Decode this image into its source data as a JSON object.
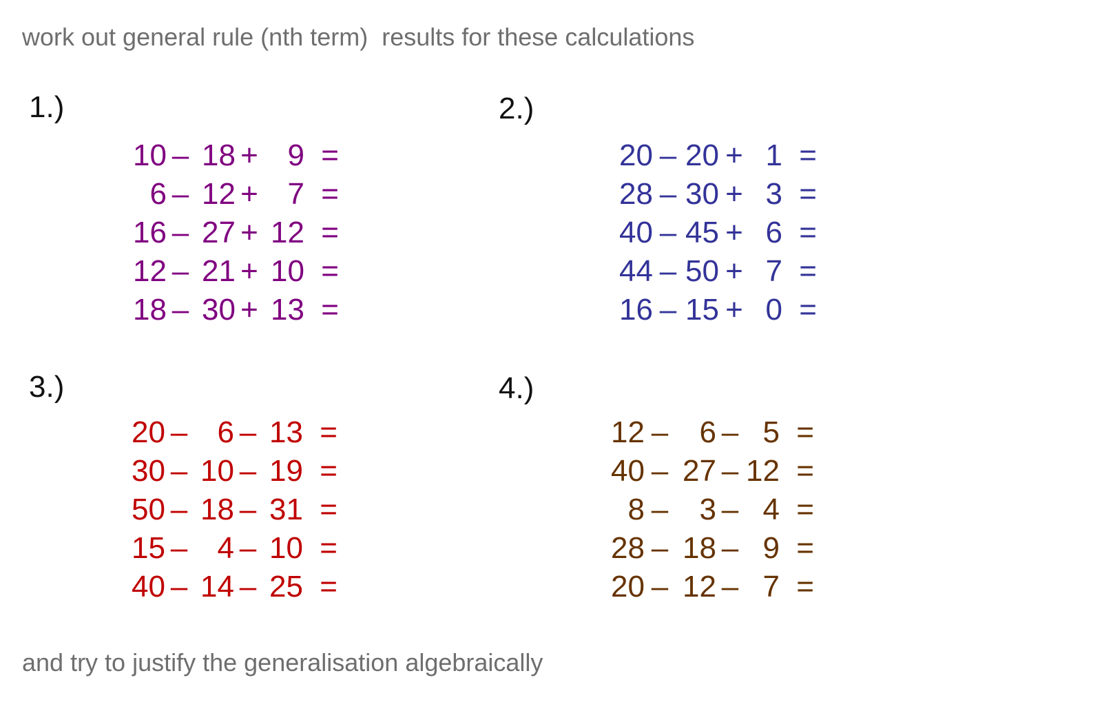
{
  "instructions": {
    "top": "work out general rule (nth term)  results for these calculations",
    "bottom": "and try to justify the generalisation algebraically"
  },
  "colors": {
    "group1": "#800080",
    "group2": "#333399",
    "group3": "#c00000",
    "group4": "#663300",
    "instruction_text": "#6e6e6e"
  },
  "groups": [
    {
      "label": "1.)",
      "equations": [
        [
          "10",
          "–",
          "18",
          "+",
          "9",
          "="
        ],
        [
          "6",
          "–",
          "12",
          "+",
          "7",
          "="
        ],
        [
          "16",
          "–",
          "27",
          "+",
          "12",
          "="
        ],
        [
          "12",
          "–",
          "21",
          "+",
          "10",
          "="
        ],
        [
          "18",
          "–",
          "30",
          "+",
          "13",
          "="
        ]
      ]
    },
    {
      "label": "2.)",
      "equations": [
        [
          "20",
          "–",
          "20",
          "+",
          "1",
          "="
        ],
        [
          "28",
          "–",
          "30",
          "+",
          "3",
          "="
        ],
        [
          "40",
          "–",
          "45",
          "+",
          "6",
          "="
        ],
        [
          "44",
          "–",
          "50",
          "+",
          "7",
          "="
        ],
        [
          "16",
          "–",
          "15",
          "+",
          "0",
          "="
        ]
      ]
    },
    {
      "label": "3.)",
      "equations": [
        [
          "20",
          "–",
          "6",
          "–",
          "13",
          "="
        ],
        [
          "30",
          "–",
          "10",
          "–",
          "19",
          "="
        ],
        [
          "50",
          "–",
          "18",
          "–",
          "31",
          "="
        ],
        [
          "15",
          "–",
          "4",
          "–",
          "10",
          "="
        ],
        [
          "40",
          "–",
          "14",
          "–",
          "25",
          "="
        ]
      ]
    },
    {
      "label": "4.)",
      "equations": [
        [
          "12",
          "–",
          "6",
          "–",
          "5",
          "="
        ],
        [
          "40",
          "–",
          "27",
          "–",
          "12",
          "="
        ],
        [
          "8",
          "–",
          "3",
          "–",
          "4",
          "="
        ],
        [
          "28",
          "–",
          "18",
          "–",
          "9",
          "="
        ],
        [
          "20",
          "–",
          "12",
          "–",
          "7",
          "="
        ]
      ]
    }
  ]
}
